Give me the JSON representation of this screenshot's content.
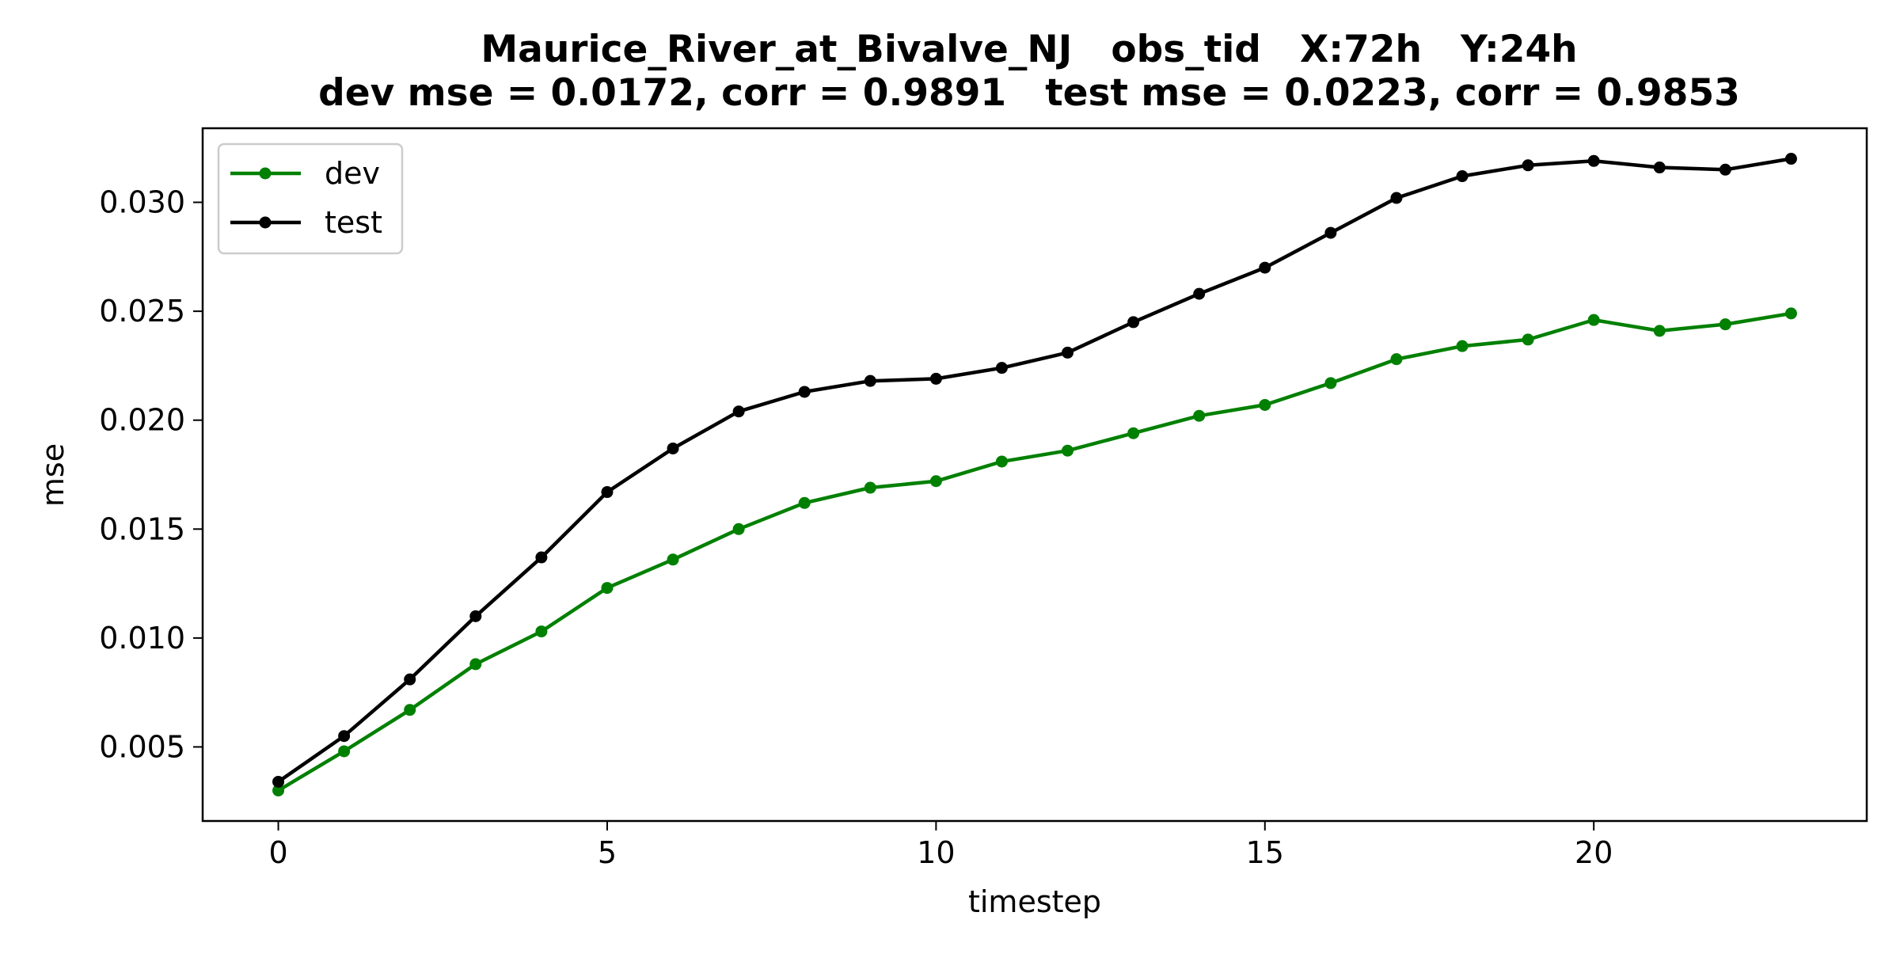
{
  "chart_data": {
    "type": "line",
    "title": "Maurice_River_at_Bivalve_NJ   obs_tid   X:72h   Y:24h",
    "subtitle": "dev mse = 0.0172, corr = 0.9891   test mse = 0.0223, corr = 0.9853",
    "xlabel": "timestep",
    "ylabel": "mse",
    "xlim": [
      -1.15,
      24.15
    ],
    "ylim": [
      0.0016,
      0.0334
    ],
    "xticks": [
      0,
      5,
      10,
      15,
      20
    ],
    "xtick_labels": [
      "0",
      "5",
      "10",
      "15",
      "20"
    ],
    "yticks": [
      0.005,
      0.01,
      0.015,
      0.02,
      0.025,
      0.03
    ],
    "ytick_labels": [
      "0.005",
      "0.010",
      "0.015",
      "0.020",
      "0.025",
      "0.030"
    ],
    "grid": false,
    "legend_position": "top-left",
    "x": [
      0,
      1,
      2,
      3,
      4,
      5,
      6,
      7,
      8,
      9,
      10,
      11,
      12,
      13,
      14,
      15,
      16,
      17,
      18,
      19,
      20,
      21,
      22,
      23
    ],
    "series": [
      {
        "name": "dev",
        "color": "#008000",
        "values": [
          0.003,
          0.0048,
          0.0067,
          0.0088,
          0.0103,
          0.0123,
          0.0136,
          0.015,
          0.0162,
          0.0169,
          0.0172,
          0.0181,
          0.0186,
          0.0194,
          0.0202,
          0.0207,
          0.0217,
          0.0228,
          0.0234,
          0.0237,
          0.0246,
          0.0241,
          0.0244,
          0.0249
        ]
      },
      {
        "name": "test",
        "color": "#000000",
        "values": [
          0.0034,
          0.0055,
          0.0081,
          0.011,
          0.0137,
          0.0167,
          0.0187,
          0.0204,
          0.0213,
          0.0218,
          0.0219,
          0.0224,
          0.0231,
          0.0245,
          0.0258,
          0.027,
          0.0286,
          0.0302,
          0.0312,
          0.0317,
          0.0319,
          0.0316,
          0.0315,
          0.032
        ]
      }
    ]
  }
}
